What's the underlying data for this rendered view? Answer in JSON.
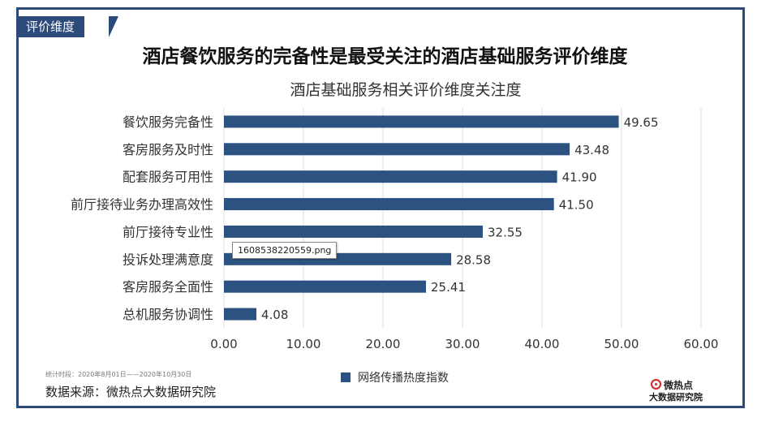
{
  "tag": "评价维度",
  "headline": "酒店餐饮服务的完备性是最受关注的酒店基础服务评价维度",
  "tooltip": "1608538220559.png",
  "footer": {
    "period": "统计时段：2020年8月01日——2020年10月30日",
    "source": "数据来源：微热点大数据研究院"
  },
  "logo": {
    "top": "微热点",
    "bottom": "大数据研究院"
  },
  "colors": {
    "bar": "#2c5282",
    "frame": "#2c4a7a"
  },
  "chart_data": {
    "type": "bar",
    "orientation": "horizontal",
    "title": "酒店基础服务相关评价维度关注度",
    "categories": [
      "餐饮服务完备性",
      "客房服务及时性",
      "配套服务可用性",
      "前厅接待业务办理高效性",
      "前厅接待专业性",
      "投诉处理满意度",
      "客房服务全面性",
      "总机服务协调性"
    ],
    "series": [
      {
        "name": "网络传播热度指数",
        "values": [
          49.65,
          43.48,
          41.9,
          41.5,
          32.55,
          28.58,
          25.41,
          4.08
        ]
      }
    ],
    "value_labels": [
      "49.65",
      "43.48",
      "41.90",
      "41.50",
      "32.55",
      "28.58",
      "25.41",
      "4.08"
    ],
    "xlim": [
      0,
      60
    ],
    "xticks": [
      "0.00",
      "10.00",
      "20.00",
      "30.00",
      "40.00",
      "50.00",
      "60.00"
    ],
    "grid": true,
    "legend_position": "bottom"
  }
}
